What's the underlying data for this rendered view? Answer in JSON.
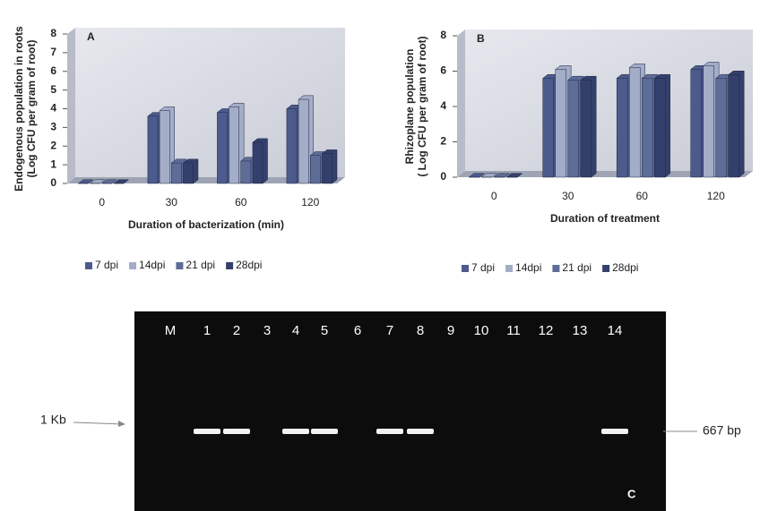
{
  "chart_data": [
    {
      "type": "bar3d",
      "panel": "A",
      "ylabel": [
        "Endogenous population in roots",
        "(Log CFU per gram of root)"
      ],
      "xlabel": "Duration of bacterization (min)",
      "categories": [
        "0",
        "30",
        "60",
        "120"
      ],
      "ylim": [
        0,
        8
      ],
      "yticks": [
        0,
        1,
        2,
        3,
        4,
        5,
        6,
        7,
        8
      ],
      "series": [
        {
          "name": "7 dpi",
          "color": "#4c5b8c",
          "values": [
            0,
            3.6,
            3.8,
            4.0
          ]
        },
        {
          "name": "14dpi",
          "color": "#a3adc8",
          "values": [
            0,
            3.9,
            4.1,
            4.5
          ]
        },
        {
          "name": "21 dpi",
          "color": "#5e6c98",
          "values": [
            0,
            1.1,
            1.2,
            1.5
          ]
        },
        {
          "name": "28dpi",
          "color": "#34406c",
          "values": [
            0,
            1.1,
            2.2,
            1.6
          ]
        }
      ]
    },
    {
      "type": "bar3d",
      "panel": "B",
      "ylabel": [
        "Rhizoplane population",
        "( Log CFU per gram of root)"
      ],
      "xlabel": "Duration of treatment",
      "categories": [
        "0",
        "30",
        "60",
        "120"
      ],
      "ylim": [
        0,
        8
      ],
      "yticks": [
        0,
        2,
        4,
        6,
        8
      ],
      "series": [
        {
          "name": "7 dpi",
          "color": "#4c5b8c",
          "values": [
            0,
            5.6,
            5.6,
            6.1
          ]
        },
        {
          "name": "14dpi",
          "color": "#a3adc8",
          "values": [
            0,
            6.1,
            6.2,
            6.3
          ]
        },
        {
          "name": "21 dpi",
          "color": "#5e6c98",
          "values": [
            0,
            5.5,
            5.6,
            5.6
          ]
        },
        {
          "name": "28dpi",
          "color": "#34406c",
          "values": [
            0,
            5.5,
            5.6,
            5.8
          ]
        }
      ]
    }
  ],
  "gel": {
    "panel": "C",
    "marker_label": "1 Kb",
    "band_label": "667 bp",
    "lanes": [
      {
        "label": "M",
        "band": false
      },
      {
        "label": "1",
        "band": true
      },
      {
        "label": "2",
        "band": true
      },
      {
        "label": "3",
        "band": false
      },
      {
        "label": "4",
        "band": true
      },
      {
        "label": "5",
        "band": true
      },
      {
        "label": "6",
        "band": false
      },
      {
        "label": "7",
        "band": true
      },
      {
        "label": "8",
        "band": true
      },
      {
        "label": "9",
        "band": false
      },
      {
        "label": "10",
        "band": false
      },
      {
        "label": "11",
        "band": false
      },
      {
        "label": "12",
        "band": false
      },
      {
        "label": "13",
        "band": false
      },
      {
        "label": "14",
        "band": true
      }
    ]
  }
}
